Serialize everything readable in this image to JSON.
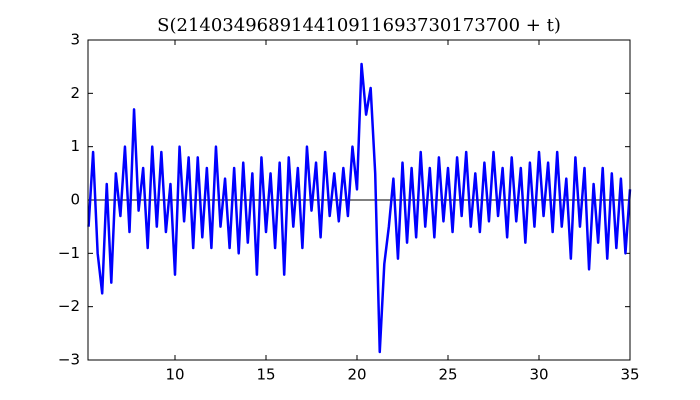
{
  "chart_data": {
    "type": "line",
    "title": "S(214034968914410911693730173700 + t)",
    "x": [
      5.25,
      5.5,
      5.75,
      6.0,
      6.25,
      6.5,
      6.75,
      7.0,
      7.25,
      7.5,
      7.75,
      8.0,
      8.25,
      8.5,
      8.75,
      9.0,
      9.25,
      9.5,
      9.75,
      10.0,
      10.25,
      10.5,
      10.75,
      11.0,
      11.25,
      11.5,
      11.75,
      12.0,
      12.25,
      12.5,
      12.75,
      13.0,
      13.25,
      13.5,
      13.75,
      14.0,
      14.25,
      14.5,
      14.75,
      15.0,
      15.25,
      15.5,
      15.75,
      16.0,
      16.25,
      16.5,
      16.75,
      17.0,
      17.25,
      17.5,
      17.75,
      18.0,
      18.25,
      18.5,
      18.75,
      19.0,
      19.25,
      19.5,
      19.75,
      20.0,
      20.25,
      20.5,
      20.75,
      21.0,
      21.25,
      21.5,
      21.75,
      22.0,
      22.25,
      22.5,
      22.75,
      23.0,
      23.25,
      23.5,
      23.75,
      24.0,
      24.25,
      24.5,
      24.75,
      25.0,
      25.25,
      25.5,
      25.75,
      26.0,
      26.25,
      26.5,
      26.75,
      27.0,
      27.25,
      27.5,
      27.75,
      28.0,
      28.25,
      28.5,
      28.75,
      29.0,
      29.25,
      29.5,
      29.75,
      30.0,
      30.25,
      30.5,
      30.75,
      31.0,
      31.25,
      31.5,
      31.75,
      32.0,
      32.25,
      32.5,
      32.75,
      33.0,
      33.25,
      33.5,
      33.75,
      34.0,
      34.25,
      34.5,
      34.75,
      35.0
    ],
    "series": [
      {
        "color": "#0000ff",
        "values": [
          -0.5,
          0.9,
          -1.0,
          -1.75,
          0.3,
          -1.55,
          0.5,
          -0.3,
          1.0,
          -0.6,
          1.7,
          -0.2,
          0.6,
          -0.9,
          1.0,
          -0.5,
          0.9,
          -0.6,
          0.3,
          -1.4,
          1.0,
          -0.4,
          0.8,
          -0.9,
          0.8,
          -0.7,
          0.6,
          -0.9,
          1.0,
          -0.5,
          0.4,
          -0.9,
          0.6,
          -1.0,
          0.7,
          -0.8,
          0.5,
          -1.4,
          0.8,
          -0.6,
          0.5,
          -0.9,
          0.7,
          -1.4,
          0.8,
          -0.5,
          0.6,
          -0.9,
          1.0,
          -0.2,
          0.7,
          -0.7,
          0.9,
          -0.3,
          0.5,
          -0.4,
          0.6,
          -0.3,
          1.0,
          0.2,
          2.55,
          1.6,
          2.1,
          0.5,
          -2.85,
          -1.2,
          -0.5,
          0.4,
          -1.1,
          0.7,
          -0.8,
          0.6,
          -0.7,
          0.9,
          -0.5,
          0.6,
          -0.7,
          0.8,
          -0.4,
          0.6,
          -0.6,
          0.8,
          -0.3,
          0.9,
          -0.5,
          0.5,
          -0.6,
          0.7,
          -0.4,
          0.9,
          -0.3,
          0.6,
          -0.7,
          0.8,
          -0.4,
          0.6,
          -0.8,
          0.7,
          -0.5,
          0.9,
          -0.3,
          0.7,
          -0.6,
          0.9,
          -0.5,
          0.4,
          -1.1,
          0.8,
          -0.5,
          0.6,
          -1.3,
          0.3,
          -0.8,
          0.6,
          -1.1,
          0.5,
          -0.9,
          0.4,
          -1.0,
          0.2
        ]
      }
    ],
    "hline": 0,
    "xlim": [
      5.22,
      35
    ],
    "ylim": [
      -3,
      3
    ],
    "xticks": [
      10,
      15,
      20,
      25,
      30,
      35
    ],
    "yticks": [
      {
        "value": -3,
        "label": "−3"
      },
      {
        "value": -2,
        "label": "−2"
      },
      {
        "value": -1,
        "label": "−1"
      },
      0,
      1,
      2,
      3
    ]
  }
}
